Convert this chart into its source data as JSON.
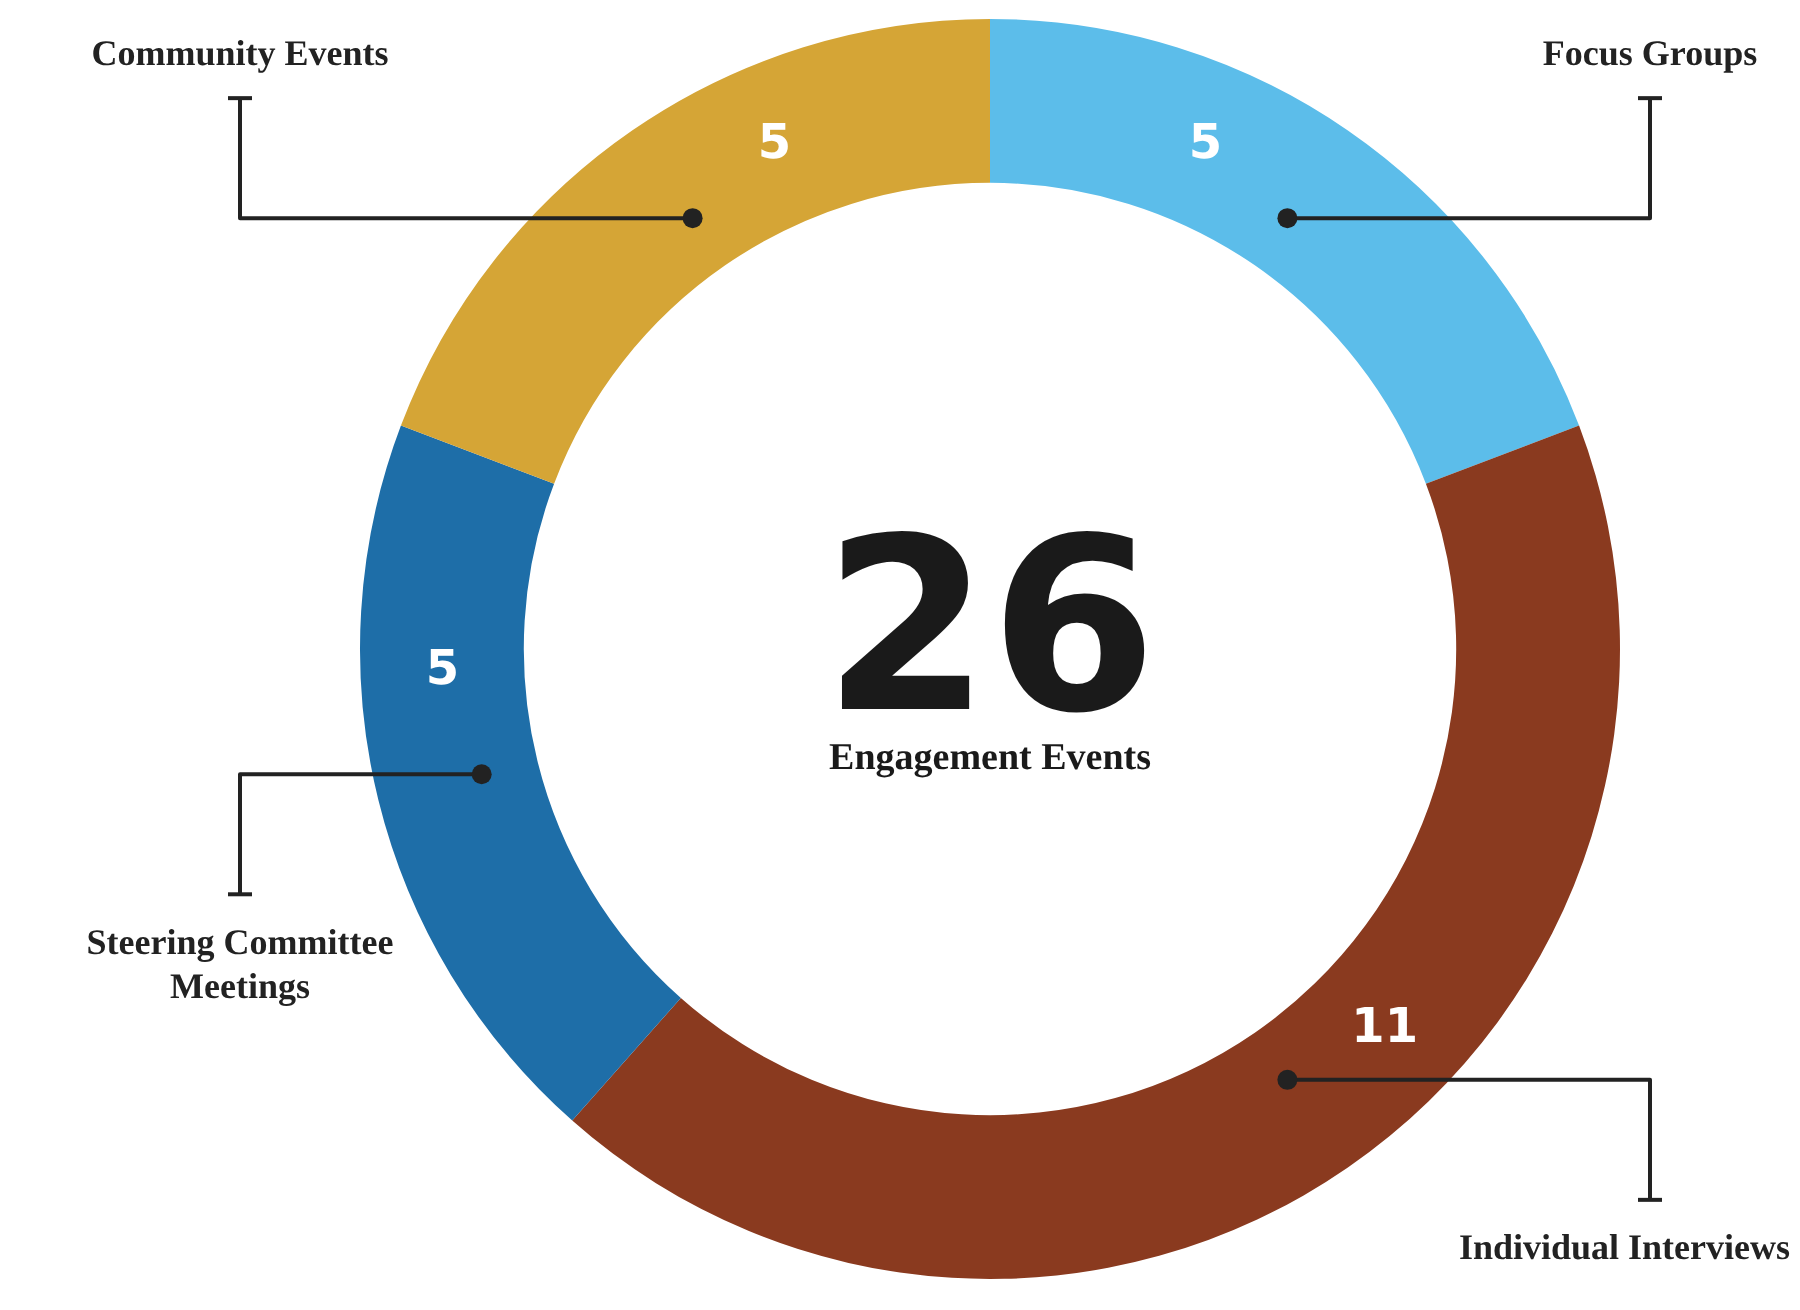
{
  "chart_data": {
    "type": "donut",
    "categories": [
      "Focus Groups",
      "Individual Interviews",
      "Steering Committee Meetings",
      "Community Events"
    ],
    "values": [
      5,
      11,
      5,
      5
    ],
    "colors": [
      "#5cbdea",
      "#8a3a1f",
      "#1e6ea8",
      "#d5a536"
    ],
    "data_labels": true,
    "legend": false,
    "annotations": [
      "26",
      "Engagement Events"
    ]
  }
}
